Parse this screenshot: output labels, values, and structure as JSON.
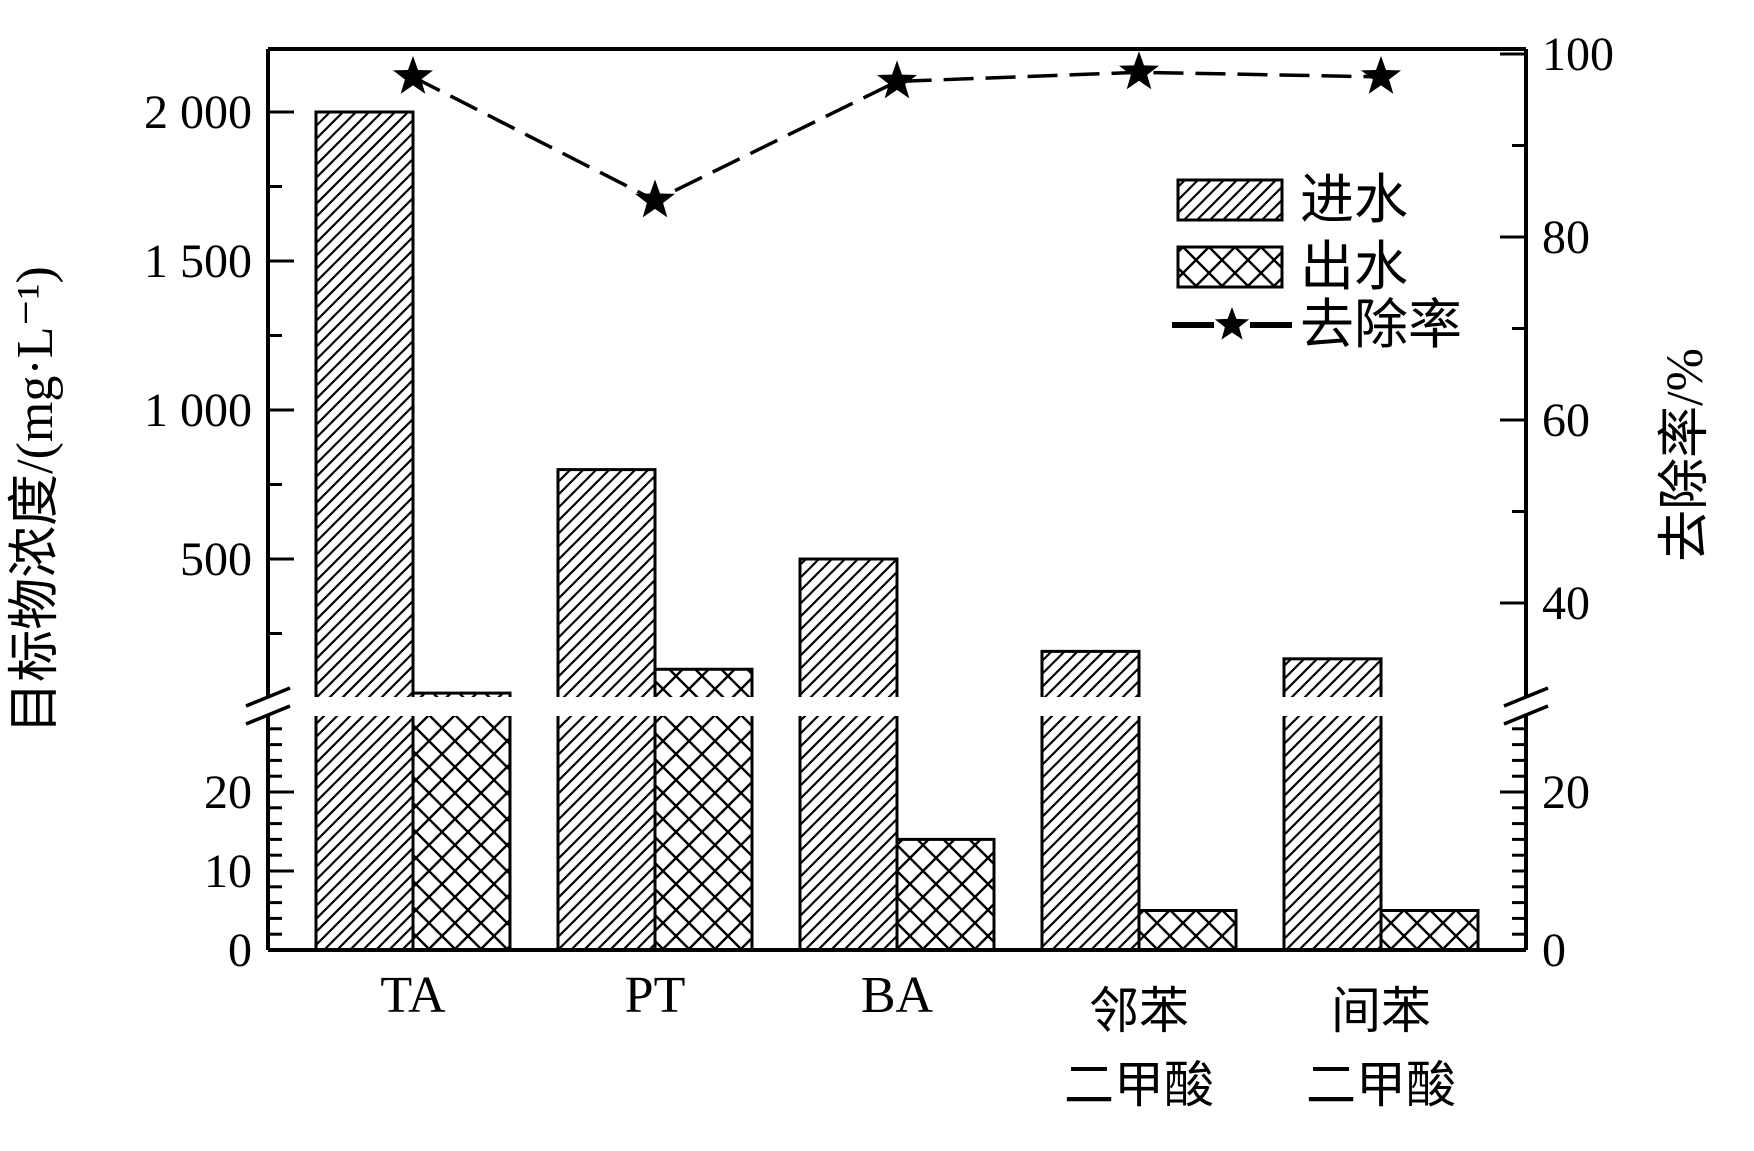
{
  "figure": {
    "background": "#ffffff",
    "ink": "#000000",
    "left_axis_title": "目标物浓度/(mg·L⁻¹)",
    "right_axis_title": "去除率/%"
  },
  "chart_data": {
    "type": "bar",
    "subtype": "dual-axis bar + line with broken y-axis",
    "categories": [
      "TA",
      "PT",
      "BA",
      "邻苯二甲酸",
      "间苯二甲酸"
    ],
    "series": [
      {
        "name": "进水",
        "type": "bar",
        "axis": "left",
        "pattern": "diagonal-hatch",
        "values": [
          2000,
          800,
          500,
          190,
          165
        ]
      },
      {
        "name": "出水",
        "type": "bar",
        "axis": "left",
        "pattern": "cross-hatch",
        "values": [
          50,
          130,
          14,
          5,
          5
        ]
      },
      {
        "name": "去除率",
        "type": "line",
        "axis": "right",
        "marker": "star",
        "line_style": "dashed",
        "values": [
          97.5,
          84,
          97,
          98,
          97.5
        ]
      }
    ],
    "title": "",
    "xlabel": "",
    "ylabel_left": "目标物浓度/(mg·L⁻¹)",
    "ylabel_right": "去除率/%",
    "left_axis": {
      "broken": true,
      "upper_range": [
        130,
        2150
      ],
      "lower_range": [
        0,
        30
      ],
      "upper_major_ticks": [
        2000,
        1500,
        1000,
        500
      ],
      "lower_major_ticks": [
        20,
        10,
        0
      ]
    },
    "right_axis": {
      "broken": true,
      "upper_range": [
        35,
        100
      ],
      "lower_range": [
        0,
        30
      ],
      "upper_major_ticks": [
        100,
        80,
        60,
        40
      ],
      "lower_major_ticks": [
        20,
        0
      ]
    },
    "grid": false,
    "legend_position": "upper-right-inside"
  },
  "ticks": {
    "left_upper": [
      {
        "v": 2000,
        "label": "2 000"
      },
      {
        "v": 1500,
        "label": "1 500"
      },
      {
        "v": 1000,
        "label": "1 000"
      },
      {
        "v": 500,
        "label": "500"
      }
    ],
    "left_upper_minor": [
      1750,
      1250,
      750,
      250
    ],
    "left_lower": [
      {
        "v": 20,
        "label": "20"
      },
      {
        "v": 10,
        "label": "10"
      },
      {
        "v": 0,
        "label": "0"
      }
    ],
    "left_lower_minor": [
      2,
      4,
      6,
      8,
      12,
      14,
      16,
      18,
      22,
      24,
      26,
      28
    ],
    "right_upper": [
      {
        "v": 100,
        "label": "100"
      },
      {
        "v": 80,
        "label": "80"
      },
      {
        "v": 60,
        "label": "60"
      },
      {
        "v": 40,
        "label": "40"
      }
    ],
    "right_upper_minor": [
      90,
      70,
      50
    ],
    "right_lower": [
      {
        "v": 20,
        "label": "20"
      },
      {
        "v": 0,
        "label": "0"
      }
    ],
    "right_lower_minor": [
      2,
      4,
      6,
      8,
      10,
      12,
      14,
      16,
      18,
      22,
      24,
      26,
      28
    ]
  },
  "x_tick_lines": [
    [
      "TA"
    ],
    [
      "PT"
    ],
    [
      "BA"
    ],
    [
      "邻苯",
      "二甲酸"
    ],
    [
      "间苯",
      "二甲酸"
    ]
  ],
  "legend": {
    "items": [
      {
        "label": "进水",
        "swatch": "diagonal-hatch"
      },
      {
        "label": "出水",
        "swatch": "cross-hatch"
      },
      {
        "label": "去除率",
        "swatch": "dash-star-line"
      }
    ]
  }
}
